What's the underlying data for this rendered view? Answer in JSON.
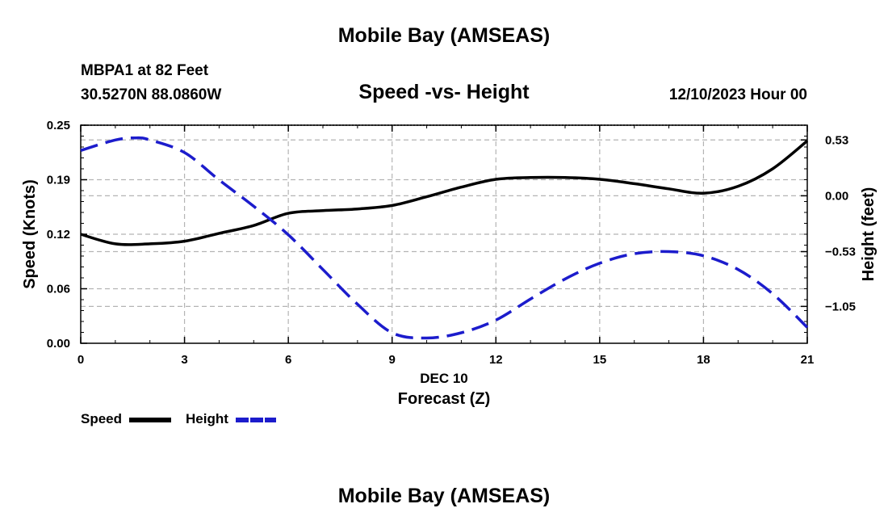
{
  "page": {
    "title_top": "Mobile Bay (AMSEAS)",
    "title_bottom": "Mobile Bay (AMSEAS)",
    "station": "MBPA1 at 82 Feet",
    "coords": "30.5270N  88.0860W",
    "subtitle": "Speed -vs- Height",
    "datetime": "12/10/2023 Hour 00"
  },
  "legend": {
    "speed_label": "Speed",
    "height_label": "Height"
  },
  "colors": {
    "speed": "#000000",
    "height": "#1c1ccc",
    "grid": "#b4b4b4"
  },
  "chart_data": {
    "type": "line",
    "title": "Speed -vs- Height",
    "xlabel": "Forecast (Z)",
    "x_date_label": "DEC 10",
    "ylabel": "Speed (Knots)",
    "y2label": "Height (feet)",
    "xlim": [
      0,
      21
    ],
    "ylim": [
      0,
      0.25
    ],
    "y2lim": [
      -1.4,
      0.67
    ],
    "x_ticks": [
      0,
      3,
      6,
      9,
      12,
      15,
      18,
      21
    ],
    "x_tick_labels": [
      "0",
      "3",
      "6",
      "9",
      "12",
      "15",
      "18",
      "21"
    ],
    "y_ticks": [
      0,
      0.0625,
      0.125,
      0.1875,
      0.25
    ],
    "y_tick_labels": [
      "0.00",
      "0.06",
      "0.12",
      "0.19",
      "0.25"
    ],
    "y2_ticks": [
      -1.05,
      -0.53,
      0.0,
      0.53
    ],
    "y2_tick_labels": [
      "−1.05",
      "−0.53",
      "0.00",
      "0.53"
    ],
    "grid": true,
    "series": [
      {
        "name": "Speed",
        "axis": "left",
        "style": "solid",
        "x": [
          0,
          1,
          2,
          3,
          4,
          5,
          6,
          7,
          8,
          9,
          10,
          11,
          12,
          13,
          14,
          15,
          16,
          17,
          18,
          19,
          20,
          21
        ],
        "values": [
          0.125,
          0.114,
          0.114,
          0.117,
          0.126,
          0.135,
          0.149,
          0.152,
          0.154,
          0.158,
          0.168,
          0.179,
          0.188,
          0.19,
          0.19,
          0.188,
          0.183,
          0.177,
          0.172,
          0.18,
          0.2,
          0.232
        ]
      },
      {
        "name": "Height",
        "axis": "right",
        "style": "dashed",
        "x": [
          0,
          1,
          1.6,
          2,
          3,
          4,
          5,
          6,
          7,
          8,
          9,
          10,
          11,
          12,
          13,
          14,
          15,
          16,
          17,
          18,
          19,
          20,
          21
        ],
        "values": [
          0.43,
          0.53,
          0.55,
          0.53,
          0.41,
          0.15,
          -0.1,
          -0.37,
          -0.7,
          -1.03,
          -1.3,
          -1.35,
          -1.3,
          -1.18,
          -0.98,
          -0.79,
          -0.64,
          -0.55,
          -0.53,
          -0.57,
          -0.7,
          -0.93,
          -1.25
        ]
      }
    ]
  }
}
